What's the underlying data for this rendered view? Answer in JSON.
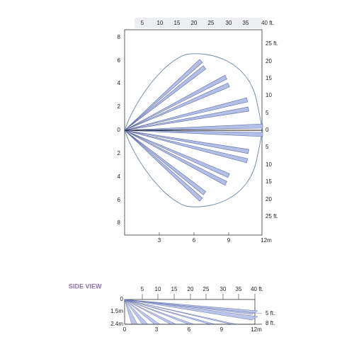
{
  "top_view": {
    "top_axis": [
      "5",
      "10",
      "15",
      "20",
      "25",
      "30",
      "35",
      "40 ft."
    ],
    "left_axis": [
      "8",
      "6",
      "4",
      "2",
      "0",
      "2",
      "4",
      "6",
      "8"
    ],
    "right_axis": [
      "25 ft.",
      "20",
      "15",
      "10",
      "5",
      "0",
      "5",
      "10",
      "15",
      "20",
      "25 ft."
    ],
    "bottom_axis": [
      "3",
      "6",
      "9",
      "12m"
    ]
  },
  "side_view": {
    "title": "SIDE VIEW",
    "top_axis": [
      "5",
      "10",
      "15",
      "20",
      "25",
      "30",
      "35",
      "40 ft."
    ],
    "left_axis": [
      "0",
      "1.5m",
      "2.4m"
    ],
    "right_axis": [
      "5 ft.",
      "8 ft."
    ],
    "bottom_axis": [
      "0",
      "3",
      "6",
      "9",
      "12m"
    ]
  }
}
